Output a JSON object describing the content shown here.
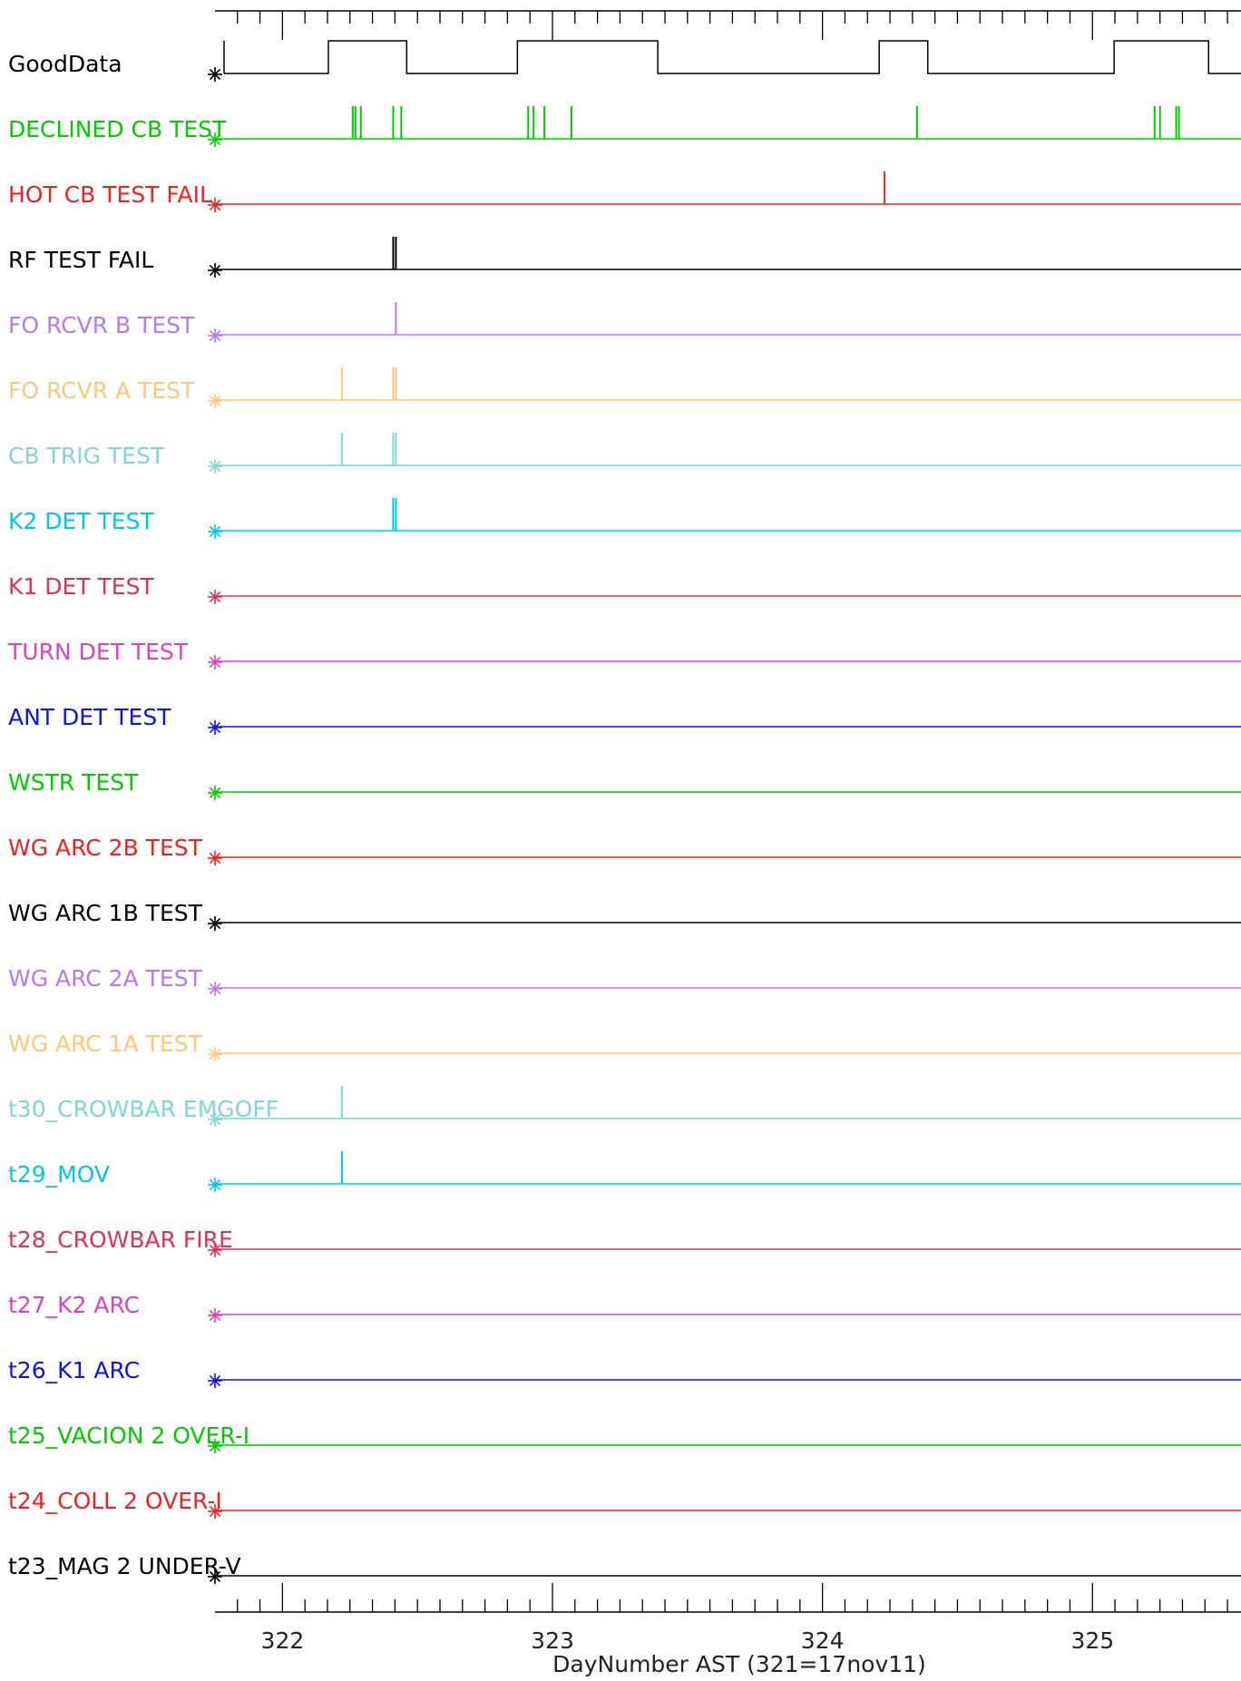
{
  "chart_data": {
    "type": "timeline",
    "xlabel": "DayNumber AST (321=17nov11)",
    "xlim": [
      321.75,
      325.55
    ],
    "major_ticks": [
      322,
      323,
      324,
      325
    ],
    "minor_tick_step": 0.0833333,
    "series": [
      {
        "name": "GoodData",
        "color": "#000000",
        "kind": "state",
        "high": [
          [
            322.17,
            322.46
          ],
          [
            322.87,
            323.39
          ],
          [
            324.21,
            324.39
          ],
          [
            325.08,
            325.43
          ]
        ]
      },
      {
        "name": "DECLINED CB TEST",
        "color": "#00cc00",
        "events": [
          322.26,
          322.27,
          322.29,
          322.41,
          322.44,
          322.91,
          322.93,
          322.97,
          323.07,
          324.35,
          325.23,
          325.25,
          325.31,
          325.32
        ]
      },
      {
        "name": "HOT CB TEST FAIL",
        "color": "#ee2222",
        "events": [
          324.23
        ]
      },
      {
        "name": "RF TEST FAIL",
        "color": "#000000",
        "events": [
          322.41,
          322.42
        ]
      },
      {
        "name": "FO RCVR B TEST",
        "color": "#b57bee",
        "events": [
          322.42
        ]
      },
      {
        "name": "FO RCVR A TEST",
        "color": "#ffc77a",
        "events": [
          322.22,
          322.41,
          322.42
        ]
      },
      {
        "name": "CB TRIG TEST",
        "color": "#7fd6d6",
        "events": [
          322.22,
          322.41,
          322.42
        ]
      },
      {
        "name": "K2 DET TEST",
        "color": "#00c8e6",
        "events": [
          322.41,
          322.42
        ]
      },
      {
        "name": "K1 DET TEST",
        "color": "#dd3355",
        "events": []
      },
      {
        "name": "TURN DET TEST",
        "color": "#dd44bb",
        "events": []
      },
      {
        "name": "ANT DET TEST",
        "color": "#1111ee",
        "events": []
      },
      {
        "name": "WSTR TEST",
        "color": "#00cc00",
        "events": []
      },
      {
        "name": "WG ARC 2B TEST",
        "color": "#ee2222",
        "events": []
      },
      {
        "name": "WG ARC 1B TEST",
        "color": "#000000",
        "events": []
      },
      {
        "name": "WG ARC 2A TEST",
        "color": "#b57bee",
        "events": []
      },
      {
        "name": "WG ARC 1A TEST",
        "color": "#ffc77a",
        "events": []
      },
      {
        "name": "t30_CROWBAR EMGOFF",
        "color": "#7fd6d6",
        "events": [
          322.22
        ]
      },
      {
        "name": "t29_MOV",
        "color": "#00c8e6",
        "events": [
          322.22
        ]
      },
      {
        "name": "t28_CROWBAR FIRE",
        "color": "#dd3355",
        "events": []
      },
      {
        "name": "t27_K2 ARC",
        "color": "#dd44bb",
        "events": []
      },
      {
        "name": "t26_K1 ARC",
        "color": "#1111ee",
        "events": []
      },
      {
        "name": "t25_VACION 2 OVER-I",
        "color": "#00cc00",
        "events": []
      },
      {
        "name": "t24_COLL 2 OVER-I",
        "color": "#ee2222",
        "events": []
      },
      {
        "name": "t23_MAG 2 UNDER-V",
        "color": "#000000",
        "events": []
      }
    ]
  }
}
